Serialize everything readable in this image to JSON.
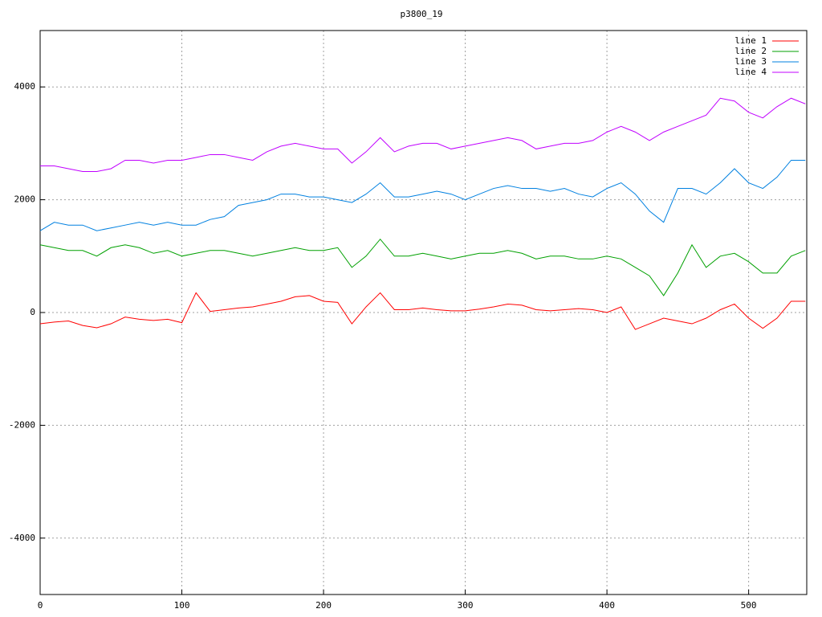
{
  "chart_data": {
    "type": "line",
    "title": "p3800_19",
    "x": [
      0,
      10,
      20,
      30,
      40,
      50,
      60,
      70,
      80,
      90,
      100,
      110,
      120,
      130,
      140,
      150,
      160,
      170,
      180,
      190,
      200,
      210,
      220,
      230,
      240,
      250,
      260,
      270,
      280,
      290,
      300,
      310,
      320,
      330,
      340,
      350,
      360,
      370,
      380,
      390,
      400,
      410,
      420,
      430,
      440,
      450,
      460,
      470,
      480,
      490,
      500,
      510,
      520,
      530,
      540
    ],
    "series": [
      {
        "name": "line 1",
        "color": "#ff0000",
        "values": [
          -200,
          -170,
          -150,
          -230,
          -270,
          -200,
          -80,
          -120,
          -140,
          -120,
          -180,
          350,
          20,
          50,
          80,
          100,
          150,
          200,
          280,
          300,
          200,
          180,
          -200,
          100,
          350,
          50,
          50,
          80,
          50,
          30,
          30,
          60,
          100,
          150,
          130,
          50,
          30,
          50,
          70,
          50,
          0,
          100,
          -300,
          -200,
          -100,
          -150,
          -200,
          -100,
          50,
          150,
          -100,
          -280,
          -100,
          200,
          200
        ]
      },
      {
        "name": "line 2",
        "color": "#00a000",
        "values": [
          1200,
          1150,
          1100,
          1100,
          1000,
          1150,
          1200,
          1150,
          1050,
          1100,
          1000,
          1050,
          1100,
          1100,
          1050,
          1000,
          1050,
          1100,
          1150,
          1100,
          1100,
          1150,
          800,
          1000,
          1300,
          1000,
          1000,
          1050,
          1000,
          950,
          1000,
          1050,
          1050,
          1100,
          1050,
          950,
          1000,
          1000,
          950,
          950,
          1000,
          950,
          800,
          650,
          300,
          700,
          1200,
          800,
          1000,
          1050,
          900,
          700,
          700,
          1000,
          1100
        ]
      },
      {
        "name": "line 3",
        "color": "#0080e0",
        "values": [
          1450,
          1600,
          1550,
          1550,
          1450,
          1500,
          1550,
          1600,
          1550,
          1600,
          1550,
          1550,
          1650,
          1700,
          1900,
          1950,
          2000,
          2100,
          2100,
          2050,
          2050,
          2000,
          1950,
          2100,
          2300,
          2050,
          2050,
          2100,
          2150,
          2100,
          2000,
          2100,
          2200,
          2250,
          2200,
          2200,
          2150,
          2200,
          2100,
          2050,
          2200,
          2300,
          2100,
          1800,
          1600,
          2200,
          2200,
          2100,
          2300,
          2550,
          2300,
          2200,
          2400,
          2700,
          2700
        ]
      },
      {
        "name": "line 4",
        "color": "#c000ff",
        "values": [
          2600,
          2600,
          2550,
          2500,
          2500,
          2550,
          2700,
          2700,
          2650,
          2700,
          2700,
          2750,
          2800,
          2800,
          2750,
          2700,
          2850,
          2950,
          3000,
          2950,
          2900,
          2900,
          2650,
          2850,
          3100,
          2850,
          2950,
          3000,
          3000,
          2900,
          2950,
          3000,
          3050,
          3100,
          3050,
          2900,
          2950,
          3000,
          3000,
          3050,
          3200,
          3300,
          3200,
          3050,
          3200,
          3300,
          3400,
          3500,
          3800,
          3750,
          3550,
          3450,
          3650,
          3800,
          3700
        ]
      }
    ],
    "xlim": [
      0,
      541
    ],
    "ylim": [
      -5000,
      5000
    ],
    "xticks": [
      0,
      100,
      200,
      300,
      400,
      500
    ],
    "yticks": [
      -4000,
      -2000,
      0,
      2000,
      4000
    ],
    "grid": true,
    "legend": "top-right"
  }
}
